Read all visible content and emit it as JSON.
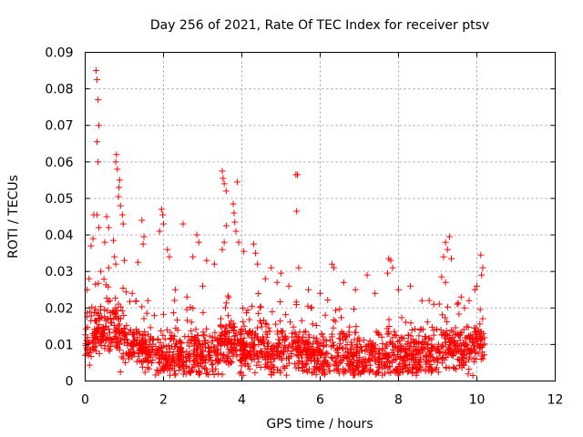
{
  "chart_data": {
    "type": "scatter",
    "title": "Day 256 of 2021, Rate Of TEC Index for receiver ptsv",
    "xlabel": "GPS time / hours",
    "ylabel": "ROTI / TECUs",
    "xlim": [
      0,
      12
    ],
    "ylim": [
      0,
      0.09
    ],
    "xticks": [
      0,
      2,
      4,
      6,
      8,
      10,
      12
    ],
    "yticks": [
      0,
      0.01,
      0.02,
      0.03,
      0.04,
      0.05,
      0.06,
      0.07,
      0.08,
      0.09
    ],
    "ytick_labels": [
      "0",
      "0.01",
      "0.02",
      "0.03",
      "0.04",
      "0.05",
      "0.06",
      "0.07",
      "0.08",
      "0.09"
    ],
    "grid": true,
    "marker": "+",
    "color": "#ff0000",
    "series": [
      {
        "name": "ROTI",
        "points": [
          [
            0.22,
            0.0455
          ],
          [
            0.3,
            0.0455
          ],
          [
            0.35,
            0.042
          ],
          [
            0.2,
            0.039
          ],
          [
            0.15,
            0.037
          ],
          [
            0.28,
            0.085
          ],
          [
            0.3,
            0.0825
          ],
          [
            0.33,
            0.077
          ],
          [
            0.35,
            0.07
          ],
          [
            0.3,
            0.0655
          ],
          [
            0.33,
            0.06
          ],
          [
            0.55,
            0.045
          ],
          [
            0.6,
            0.042
          ],
          [
            0.5,
            0.038
          ],
          [
            0.72,
            0.0385
          ],
          [
            0.8,
            0.062
          ],
          [
            0.78,
            0.06
          ],
          [
            0.82,
            0.058
          ],
          [
            0.88,
            0.055
          ],
          [
            0.86,
            0.053
          ],
          [
            0.85,
            0.0505
          ],
          [
            0.9,
            0.048
          ],
          [
            0.95,
            0.0455
          ],
          [
            0.97,
            0.043
          ],
          [
            0.75,
            0.034
          ],
          [
            0.78,
            0.032
          ],
          [
            1.0,
            0.033
          ],
          [
            1.45,
            0.044
          ],
          [
            1.5,
            0.0395
          ],
          [
            1.48,
            0.0375
          ],
          [
            1.35,
            0.0325
          ],
          [
            1.95,
            0.047
          ],
          [
            1.98,
            0.0455
          ],
          [
            2.0,
            0.043
          ],
          [
            1.9,
            0.041
          ],
          [
            2.1,
            0.036
          ],
          [
            2.15,
            0.034
          ],
          [
            2.5,
            0.043
          ],
          [
            2.85,
            0.04
          ],
          [
            2.9,
            0.038
          ],
          [
            2.75,
            0.034
          ],
          [
            3.1,
            0.033
          ],
          [
            3.3,
            0.032
          ],
          [
            3.5,
            0.0575
          ],
          [
            3.52,
            0.0555
          ],
          [
            3.55,
            0.054
          ],
          [
            3.6,
            0.052
          ],
          [
            3.78,
            0.0485
          ],
          [
            3.8,
            0.046
          ],
          [
            3.82,
            0.0435
          ],
          [
            3.85,
            0.041
          ],
          [
            3.6,
            0.0425
          ],
          [
            3.55,
            0.038
          ],
          [
            3.5,
            0.036
          ],
          [
            3.88,
            0.0545
          ],
          [
            3.92,
            0.038
          ],
          [
            4.05,
            0.0355
          ],
          [
            4.3,
            0.0375
          ],
          [
            4.35,
            0.035
          ],
          [
            4.4,
            0.032
          ],
          [
            4.75,
            0.031
          ],
          [
            5.0,
            0.0295
          ],
          [
            5.38,
            0.0565
          ],
          [
            5.42,
            0.0565
          ],
          [
            5.4,
            0.0465
          ],
          [
            5.45,
            0.031
          ],
          [
            6.3,
            0.032
          ],
          [
            6.35,
            0.031
          ],
          [
            7.2,
            0.029
          ],
          [
            7.75,
            0.0335
          ],
          [
            7.8,
            0.033
          ],
          [
            7.85,
            0.031
          ],
          [
            7.72,
            0.0295
          ],
          [
            8.3,
            0.026
          ],
          [
            9.2,
            0.038
          ],
          [
            9.3,
            0.0395
          ],
          [
            9.25,
            0.036
          ],
          [
            9.15,
            0.034
          ],
          [
            9.35,
            0.0335
          ],
          [
            9.1,
            0.0285
          ],
          [
            9.2,
            0.027
          ],
          [
            10.1,
            0.0345
          ],
          [
            10.15,
            0.031
          ],
          [
            10.12,
            0.029
          ],
          [
            10.0,
            0.026
          ],
          [
            9.95,
            0.025
          ],
          [
            0.05,
            0.025
          ],
          [
            0.1,
            0.028
          ],
          [
            0.4,
            0.03
          ],
          [
            0.6,
            0.031
          ],
          [
            1.2,
            0.024
          ],
          [
            1.6,
            0.022
          ],
          [
            2.3,
            0.025
          ],
          [
            2.6,
            0.023
          ],
          [
            3.0,
            0.026
          ],
          [
            4.6,
            0.028
          ],
          [
            4.9,
            0.027
          ],
          [
            5.2,
            0.026
          ],
          [
            5.7,
            0.025
          ],
          [
            6.0,
            0.024
          ],
          [
            6.6,
            0.027
          ],
          [
            6.9,
            0.025
          ],
          [
            7.4,
            0.024
          ],
          [
            8.0,
            0.025
          ],
          [
            8.6,
            0.022
          ],
          [
            8.9,
            0.021
          ],
          [
            9.6,
            0.023
          ],
          [
            9.8,
            0.022
          ],
          [
            0.9,
            0.0025
          ],
          [
            3.4,
            0.002
          ],
          [
            9.9,
            0.0015
          ],
          [
            5.6,
            0.003
          ],
          [
            7.1,
            0.0025
          ],
          [
            2.4,
            0.003
          ]
        ]
      }
    ]
  }
}
